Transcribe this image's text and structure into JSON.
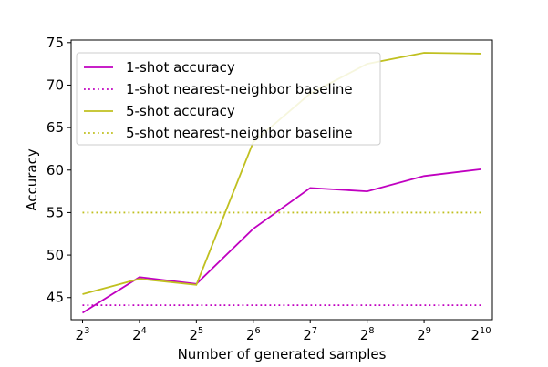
{
  "chart_data": {
    "type": "line",
    "title": "",
    "xlabel": "Number of generated samples",
    "ylabel": "Accuracy",
    "x_ticks": [
      {
        "base": "2",
        "exp": "3"
      },
      {
        "base": "2",
        "exp": "4"
      },
      {
        "base": "2",
        "exp": "5"
      },
      {
        "base": "2",
        "exp": "6"
      },
      {
        "base": "2",
        "exp": "7"
      },
      {
        "base": "2",
        "exp": "8"
      },
      {
        "base": "2",
        "exp": "9"
      },
      {
        "base": "2",
        "exp": "10"
      }
    ],
    "x_exponents": [
      3,
      4,
      5,
      6,
      7,
      8,
      9,
      10
    ],
    "xlim": [
      2.8,
      10.2
    ],
    "ylim": [
      42.4,
      75.3
    ],
    "y_ticks": [
      45,
      50,
      55,
      60,
      65,
      70,
      75
    ],
    "grid": false,
    "legend_position": "top-left",
    "series": [
      {
        "name": "1-shot accuracy",
        "color": "#c000c0",
        "style": "solid",
        "values": [
          43.2,
          47.4,
          46.6,
          53.1,
          57.9,
          57.5,
          59.3,
          60.1
        ]
      },
      {
        "name": "1-shot nearest-neighbor baseline",
        "color": "#c000c0",
        "style": "dotted",
        "values": [
          44.1,
          44.1,
          44.1,
          44.1,
          44.1,
          44.1,
          44.1,
          44.1
        ]
      },
      {
        "name": "5-shot accuracy",
        "color": "#c0c020",
        "style": "solid",
        "values": [
          45.4,
          47.2,
          46.5,
          63.3,
          69.0,
          72.5,
          73.8,
          73.7
        ]
      },
      {
        "name": "5-shot nearest-neighbor baseline",
        "color": "#c0c020",
        "style": "dotted",
        "values": [
          55.0,
          55.0,
          55.0,
          55.0,
          55.0,
          55.0,
          55.0,
          55.0
        ]
      }
    ]
  }
}
